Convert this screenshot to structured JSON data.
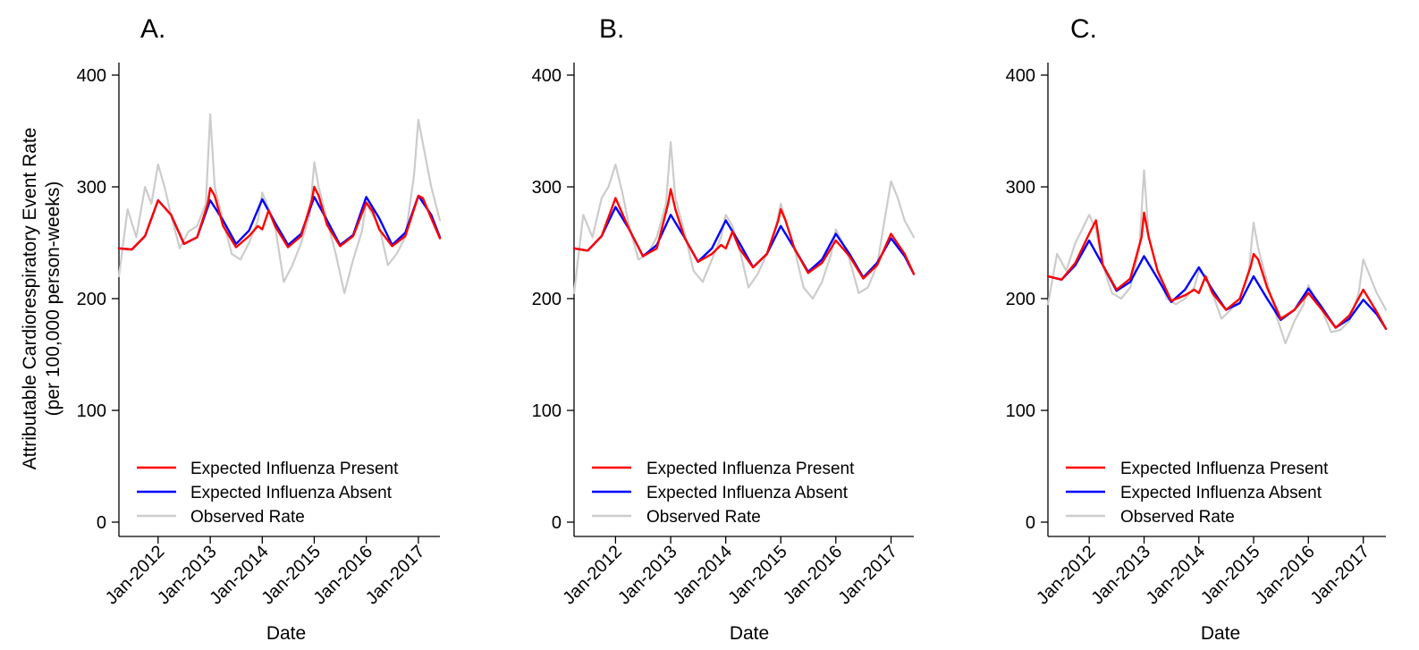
{
  "figure": {
    "ylabel_line1": "Attributable Cardiorespiratory Event Rate",
    "ylabel_line2": "(per 100,000 person-weeks)"
  },
  "legend": {
    "items": [
      {
        "key": "present",
        "label": "Expected Influenza Present",
        "color": "#ff0000"
      },
      {
        "key": "absent",
        "label": "Expected Influenza Absent",
        "color": "#0000ff"
      },
      {
        "key": "observed",
        "label": "Observed Rate",
        "color": "#cccccc"
      }
    ]
  },
  "chart_data": [
    {
      "type": "line",
      "panel": "A.",
      "xlabel": "Date",
      "xlim": [
        "2011-04-01",
        "2017-06-01"
      ],
      "ylim": [
        0,
        400
      ],
      "yticks": [
        0,
        100,
        200,
        300,
        400
      ],
      "xticks": [
        "Jan-2012",
        "Jan-2013",
        "Jan-2014",
        "Jan-2015",
        "Jan-2016",
        "Jan-2017"
      ],
      "xtick_dates": [
        "2012-01-01",
        "2013-01-01",
        "2014-01-01",
        "2015-01-01",
        "2016-01-01",
        "2017-01-01"
      ],
      "grid": false,
      "legend_position": "bottom-left",
      "series": [
        {
          "name": "Expected Influenza Present",
          "color": "#ff0000",
          "x": [
            "2011-04-01",
            "2011-07-01",
            "2011-10-01",
            "2012-01-01",
            "2012-04-01",
            "2012-07-01",
            "2012-10-01",
            "2012-12-15",
            "2013-01-01",
            "2013-02-01",
            "2013-04-01",
            "2013-07-01",
            "2013-10-01",
            "2013-12-01",
            "2014-01-01",
            "2014-02-15",
            "2014-04-01",
            "2014-07-01",
            "2014-10-01",
            "2014-12-15",
            "2015-01-01",
            "2015-02-01",
            "2015-04-01",
            "2015-07-01",
            "2015-10-01",
            "2016-01-01",
            "2016-02-15",
            "2016-04-01",
            "2016-07-01",
            "2016-10-01",
            "2017-01-01",
            "2017-02-01",
            "2017-04-01",
            "2017-06-01"
          ],
          "y": [
            245,
            244,
            256,
            288,
            275,
            249,
            255,
            285,
            299,
            292,
            265,
            246,
            256,
            265,
            262,
            279,
            265,
            246,
            256,
            288,
            300,
            292,
            266,
            247,
            256,
            286,
            278,
            262,
            247,
            256,
            292,
            290,
            272,
            254
          ]
        },
        {
          "name": "Expected Influenza Absent",
          "color": "#0000ff",
          "x": [
            "2011-04-01",
            "2011-07-01",
            "2011-10-01",
            "2012-01-01",
            "2012-04-01",
            "2012-07-01",
            "2012-10-01",
            "2013-01-01",
            "2013-04-01",
            "2013-07-01",
            "2013-10-01",
            "2014-01-01",
            "2014-04-01",
            "2014-07-01",
            "2014-10-01",
            "2015-01-01",
            "2015-04-01",
            "2015-07-01",
            "2015-10-01",
            "2016-01-01",
            "2016-04-01",
            "2016-07-01",
            "2016-10-01",
            "2017-01-01",
            "2017-04-01",
            "2017-06-01"
          ],
          "y": [
            245,
            244,
            256,
            288,
            275,
            249,
            255,
            288,
            270,
            249,
            261,
            289,
            268,
            248,
            258,
            291,
            270,
            248,
            257,
            291,
            272,
            248,
            259,
            292,
            275,
            255
          ]
        },
        {
          "name": "Observed Rate",
          "color": "#cccccc",
          "x": [
            "2011-04-01",
            "2011-06-01",
            "2011-08-01",
            "2011-10-01",
            "2011-11-15",
            "2012-01-01",
            "2012-02-15",
            "2012-04-01",
            "2012-06-01",
            "2012-08-01",
            "2012-10-01",
            "2012-12-01",
            "2013-01-01",
            "2013-02-01",
            "2013-04-01",
            "2013-06-01",
            "2013-08-01",
            "2013-10-01",
            "2013-12-01",
            "2014-01-01",
            "2014-02-15",
            "2014-04-01",
            "2014-06-01",
            "2014-08-01",
            "2014-10-01",
            "2014-12-01",
            "2015-01-01",
            "2015-02-01",
            "2015-04-01",
            "2015-06-01",
            "2015-08-01",
            "2015-10-01",
            "2015-12-01",
            "2016-01-01",
            "2016-02-15",
            "2016-04-01",
            "2016-06-01",
            "2016-08-01",
            "2016-10-01",
            "2016-12-01",
            "2017-01-01",
            "2017-02-15",
            "2017-04-01",
            "2017-06-01"
          ],
          "y": [
            220,
            280,
            255,
            300,
            285,
            320,
            300,
            275,
            245,
            260,
            265,
            285,
            365,
            300,
            270,
            240,
            235,
            250,
            270,
            295,
            280,
            265,
            215,
            230,
            250,
            275,
            322,
            300,
            270,
            240,
            205,
            235,
            260,
            285,
            275,
            265,
            230,
            240,
            255,
            310,
            360,
            330,
            300,
            270
          ]
        }
      ]
    },
    {
      "type": "line",
      "panel": "B.",
      "xlabel": "Date",
      "xlim": [
        "2011-04-01",
        "2017-06-01"
      ],
      "ylim": [
        0,
        400
      ],
      "yticks": [
        0,
        100,
        200,
        300,
        400
      ],
      "xticks": [
        "Jan-2012",
        "Jan-2013",
        "Jan-2014",
        "Jan-2015",
        "Jan-2016",
        "Jan-2017"
      ],
      "xtick_dates": [
        "2012-01-01",
        "2013-01-01",
        "2014-01-01",
        "2015-01-01",
        "2016-01-01",
        "2017-01-01"
      ],
      "grid": false,
      "legend_position": "bottom-left",
      "series": [
        {
          "name": "Expected Influenza Present",
          "color": "#ff0000",
          "x": [
            "2011-04-01",
            "2011-07-01",
            "2011-10-01",
            "2012-01-01",
            "2012-04-01",
            "2012-07-01",
            "2012-10-01",
            "2012-12-15",
            "2013-01-01",
            "2013-02-01",
            "2013-04-01",
            "2013-07-01",
            "2013-10-01",
            "2013-12-01",
            "2014-01-01",
            "2014-02-15",
            "2014-04-01",
            "2014-07-01",
            "2014-10-01",
            "2014-12-15",
            "2015-01-01",
            "2015-02-01",
            "2015-04-01",
            "2015-07-01",
            "2015-10-01",
            "2016-01-01",
            "2016-04-01",
            "2016-07-01",
            "2016-10-01",
            "2017-01-01",
            "2017-04-01",
            "2017-06-01"
          ],
          "y": [
            245,
            243,
            256,
            290,
            262,
            238,
            245,
            285,
            298,
            280,
            255,
            233,
            240,
            248,
            245,
            260,
            245,
            228,
            240,
            270,
            280,
            270,
            245,
            223,
            232,
            252,
            238,
            218,
            230,
            258,
            240,
            222
          ]
        },
        {
          "name": "Expected Influenza Absent",
          "color": "#0000ff",
          "x": [
            "2011-04-01",
            "2011-07-01",
            "2011-10-01",
            "2012-01-01",
            "2012-04-01",
            "2012-07-01",
            "2012-10-01",
            "2013-01-01",
            "2013-04-01",
            "2013-07-01",
            "2013-10-01",
            "2014-01-01",
            "2014-04-01",
            "2014-07-01",
            "2014-10-01",
            "2015-01-01",
            "2015-04-01",
            "2015-07-01",
            "2015-10-01",
            "2016-01-01",
            "2016-04-01",
            "2016-07-01",
            "2016-10-01",
            "2017-01-01",
            "2017-04-01",
            "2017-06-01"
          ],
          "y": [
            245,
            243,
            256,
            282,
            262,
            238,
            248,
            275,
            255,
            233,
            245,
            270,
            250,
            228,
            240,
            265,
            245,
            224,
            235,
            258,
            240,
            219,
            232,
            254,
            238,
            222
          ]
        },
        {
          "name": "Observed Rate",
          "color": "#cccccc",
          "x": [
            "2011-04-01",
            "2011-06-01",
            "2011-08-01",
            "2011-10-01",
            "2011-11-15",
            "2012-01-01",
            "2012-02-15",
            "2012-04-01",
            "2012-06-01",
            "2012-08-01",
            "2012-10-01",
            "2012-12-01",
            "2013-01-01",
            "2013-02-01",
            "2013-04-01",
            "2013-06-01",
            "2013-08-01",
            "2013-10-01",
            "2013-12-01",
            "2014-01-01",
            "2014-02-15",
            "2014-04-01",
            "2014-06-01",
            "2014-08-01",
            "2014-10-01",
            "2014-12-01",
            "2015-01-01",
            "2015-02-01",
            "2015-04-01",
            "2015-06-01",
            "2015-08-01",
            "2015-10-01",
            "2015-12-01",
            "2016-01-01",
            "2016-02-15",
            "2016-04-01",
            "2016-06-01",
            "2016-08-01",
            "2016-10-01",
            "2016-12-01",
            "2017-01-01",
            "2017-02-15",
            "2017-04-01",
            "2017-06-01"
          ],
          "y": [
            205,
            275,
            255,
            290,
            300,
            320,
            295,
            265,
            235,
            240,
            255,
            285,
            340,
            290,
            260,
            225,
            215,
            235,
            255,
            275,
            265,
            245,
            210,
            222,
            240,
            265,
            285,
            270,
            245,
            210,
            200,
            215,
            240,
            262,
            250,
            235,
            205,
            210,
            230,
            280,
            305,
            290,
            270,
            255
          ]
        }
      ]
    },
    {
      "type": "line",
      "panel": "C.",
      "xlabel": "Date",
      "xlim": [
        "2011-04-01",
        "2017-06-01"
      ],
      "ylim": [
        0,
        400
      ],
      "yticks": [
        0,
        100,
        200,
        300,
        400
      ],
      "xticks": [
        "Jan-2012",
        "Jan-2013",
        "Jan-2014",
        "Jan-2015",
        "Jan-2016",
        "Jan-2017"
      ],
      "xtick_dates": [
        "2012-01-01",
        "2013-01-01",
        "2014-01-01",
        "2015-01-01",
        "2016-01-01",
        "2017-01-01"
      ],
      "grid": false,
      "legend_position": "bottom-left",
      "series": [
        {
          "name": "Expected Influenza Present",
          "color": "#ff0000",
          "x": [
            "2011-04-01",
            "2011-07-01",
            "2011-10-01",
            "2012-01-01",
            "2012-02-15",
            "2012-04-01",
            "2012-07-01",
            "2012-10-01",
            "2012-12-15",
            "2013-01-01",
            "2013-02-01",
            "2013-04-01",
            "2013-07-01",
            "2013-10-01",
            "2013-12-01",
            "2014-01-01",
            "2014-02-15",
            "2014-04-01",
            "2014-07-01",
            "2014-10-01",
            "2014-12-15",
            "2015-01-01",
            "2015-02-01",
            "2015-04-01",
            "2015-07-01",
            "2015-10-01",
            "2016-01-01",
            "2016-04-01",
            "2016-07-01",
            "2016-10-01",
            "2017-01-01",
            "2017-04-01",
            "2017-06-01"
          ],
          "y": [
            220,
            217,
            232,
            258,
            270,
            230,
            208,
            218,
            255,
            277,
            255,
            225,
            198,
            203,
            208,
            205,
            220,
            205,
            190,
            200,
            230,
            240,
            235,
            210,
            182,
            190,
            205,
            190,
            174,
            185,
            208,
            188,
            173
          ]
        },
        {
          "name": "Expected Influenza Absent",
          "color": "#0000ff",
          "x": [
            "2011-04-01",
            "2011-07-01",
            "2011-10-01",
            "2012-01-01",
            "2012-04-01",
            "2012-07-01",
            "2012-10-01",
            "2013-01-01",
            "2013-04-01",
            "2013-07-01",
            "2013-10-01",
            "2014-01-01",
            "2014-04-01",
            "2014-07-01",
            "2014-10-01",
            "2015-01-01",
            "2015-04-01",
            "2015-07-01",
            "2015-10-01",
            "2016-01-01",
            "2016-04-01",
            "2016-07-01",
            "2016-10-01",
            "2017-01-01",
            "2017-04-01",
            "2017-06-01"
          ],
          "y": [
            220,
            217,
            230,
            252,
            230,
            207,
            215,
            238,
            218,
            197,
            208,
            228,
            208,
            190,
            196,
            220,
            200,
            181,
            190,
            209,
            192,
            174,
            182,
            199,
            186,
            173
          ]
        },
        {
          "name": "Observed Rate",
          "color": "#cccccc",
          "x": [
            "2011-04-01",
            "2011-06-01",
            "2011-08-01",
            "2011-10-01",
            "2011-11-15",
            "2012-01-01",
            "2012-02-15",
            "2012-04-01",
            "2012-06-01",
            "2012-08-01",
            "2012-10-01",
            "2012-12-01",
            "2013-01-01",
            "2013-02-01",
            "2013-04-01",
            "2013-06-01",
            "2013-08-01",
            "2013-10-01",
            "2013-12-01",
            "2014-01-01",
            "2014-02-15",
            "2014-04-01",
            "2014-06-01",
            "2014-08-01",
            "2014-10-01",
            "2014-12-01",
            "2015-01-01",
            "2015-02-01",
            "2015-04-01",
            "2015-06-01",
            "2015-08-01",
            "2015-10-01",
            "2015-12-01",
            "2016-01-01",
            "2016-02-15",
            "2016-04-01",
            "2016-06-01",
            "2016-08-01",
            "2016-10-01",
            "2016-12-01",
            "2017-01-01",
            "2017-02-15",
            "2017-04-01",
            "2017-06-01"
          ],
          "y": [
            195,
            240,
            225,
            250,
            262,
            275,
            262,
            230,
            205,
            200,
            210,
            245,
            315,
            255,
            225,
            200,
            195,
            200,
            210,
            225,
            220,
            205,
            182,
            190,
            200,
            225,
            268,
            245,
            215,
            185,
            160,
            180,
            195,
            212,
            200,
            190,
            170,
            172,
            180,
            205,
            235,
            220,
            205,
            190
          ]
        }
      ]
    }
  ]
}
